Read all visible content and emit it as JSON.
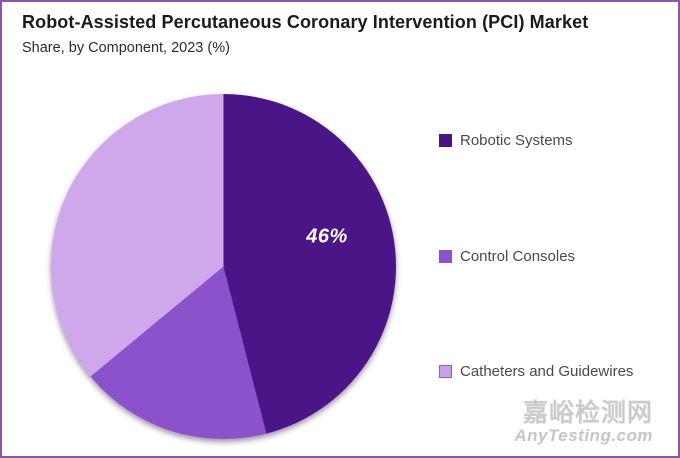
{
  "frame": {
    "border_color": "#8d56a9",
    "background": "#ffffff"
  },
  "header": {
    "title": "Robot-Assisted Percutaneous Coronary Intervention (PCI) Market",
    "subtitle": "Share, by Component, 2023 (%)"
  },
  "chart_data": {
    "type": "pie",
    "title": "Robot-Assisted Percutaneous Coronary Intervention (PCI) Market",
    "subtitle": "Share, by Component, 2023 (%)",
    "labels": [
      "Robotic Systems",
      "Control Consoles",
      "Catheters and Guidewires"
    ],
    "values": [
      46,
      18,
      36
    ],
    "colors": [
      "#4a1687",
      "#8b52cc",
      "#cfa8ec"
    ],
    "start_angle_deg": 0,
    "direction": "clockwise",
    "legend_position": "right",
    "data_labels": [
      {
        "slice": "Robotic Systems",
        "text": "46%",
        "color": "#ffffff"
      }
    ]
  },
  "pie_label": {
    "text": "46%"
  },
  "legend": {
    "items": [
      {
        "label": "Robotic Systems",
        "color": "#4a1687",
        "border": "#4a1687"
      },
      {
        "label": "Control Consoles",
        "color": "#8b52cc",
        "border": "#8b52cc"
      },
      {
        "label": "Catheters and Guidewires",
        "color": "#cba0e8",
        "border": "#9b59b6"
      }
    ]
  },
  "watermark": {
    "line1": "嘉峪检测网",
    "line2": "AnyTesting.com"
  }
}
